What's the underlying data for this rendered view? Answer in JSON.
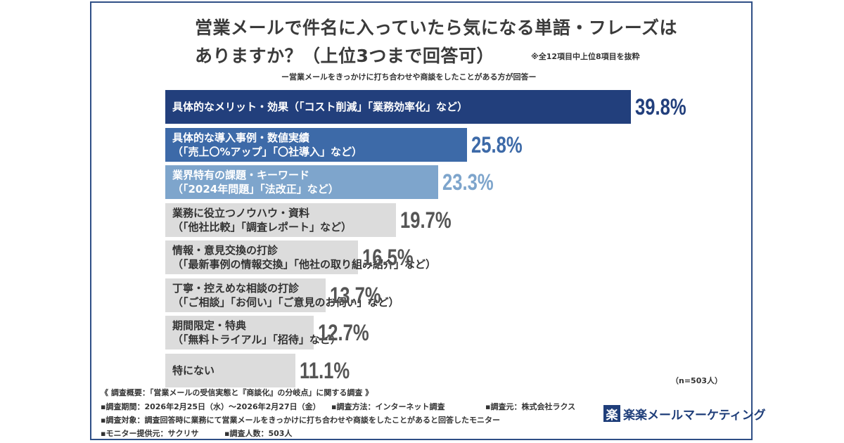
{
  "header": {
    "title_line1": "営業メールで件名に入っていたら気になる単語・フレーズは",
    "title_line2": "ありますか？（上位3つまで回答可）",
    "note": "※全12項目中上位8項目を抜粋",
    "subtitle": "ー営業メールをきっかけに打ち合わせや商談をしたことがある方が回答ー"
  },
  "chart_data": {
    "type": "bar",
    "orientation": "horizontal",
    "categories": [
      [
        "具体的なメリット・効果（「コスト削減」「業務効率化」など）"
      ],
      [
        "具体的な導入事例・数値実績",
        "（「売上〇%アップ」「〇社導入」など）"
      ],
      [
        "業界特有の課題・キーワード",
        "（「2024年問題」「法改正」など）"
      ],
      [
        "業務に役立つノウハウ・資料",
        "（「他社比較」「調査レポート」など）"
      ],
      [
        "情報・意見交換の打診",
        "（「最新事例の情報交換」「他社の取り組み紹介」など）"
      ],
      [
        "丁寧・控えめな相談の打診",
        "（「ご相談」「お伺い」「ご意見のお伺い」など）"
      ],
      [
        "期間限定・特典",
        "（「無料トライアル」「招待」など）"
      ],
      [
        "特にない"
      ]
    ],
    "values": [
      39.8,
      25.8,
      23.3,
      19.7,
      16.5,
      13.7,
      12.7,
      11.1
    ],
    "value_labels": [
      "39.8%",
      "25.8%",
      "23.3%",
      "19.7%",
      "16.5%",
      "13.7%",
      "12.7%",
      "11.1%"
    ],
    "bar_colors": [
      "#223f7c",
      "#3d6aa8",
      "#7ea5cc",
      "#dcdcdc",
      "#dcdcdc",
      "#dcdcdc",
      "#dcdcdc",
      "#dcdcdc"
    ],
    "label_colors": [
      "#ffffff",
      "#ffffff",
      "#ffffff",
      "#333333",
      "#333333",
      "#333333",
      "#333333",
      "#333333"
    ],
    "value_colors": [
      "#223f7c",
      "#3d6aa8",
      "#7ea5cc",
      "#555555",
      "#555555",
      "#555555",
      "#555555",
      "#555555"
    ],
    "xlim": [
      0,
      39.8
    ]
  },
  "footer": {
    "n_note": "（n=503人）",
    "survey_title": "《 調査概要：「営業メールの受信実態と『商談化』の分岐点」に関する調査 》",
    "period": "▪調査期間：2026年2月25日（水）～2026年2月27日（金）",
    "method": "▪調査方法：インターネット調査",
    "source": "▪調査元：株式会社ラクス",
    "target": "▪調査対象：調査回答時に業務にて営業メールをきっかけに打ち合わせや商談をしたことがあると回答したモニター",
    "provider": "▪モニター提供元：サクリサ",
    "count": "▪調査人数：503人",
    "logo_mark": "楽",
    "logo_text": "楽楽メールマーケティング"
  }
}
